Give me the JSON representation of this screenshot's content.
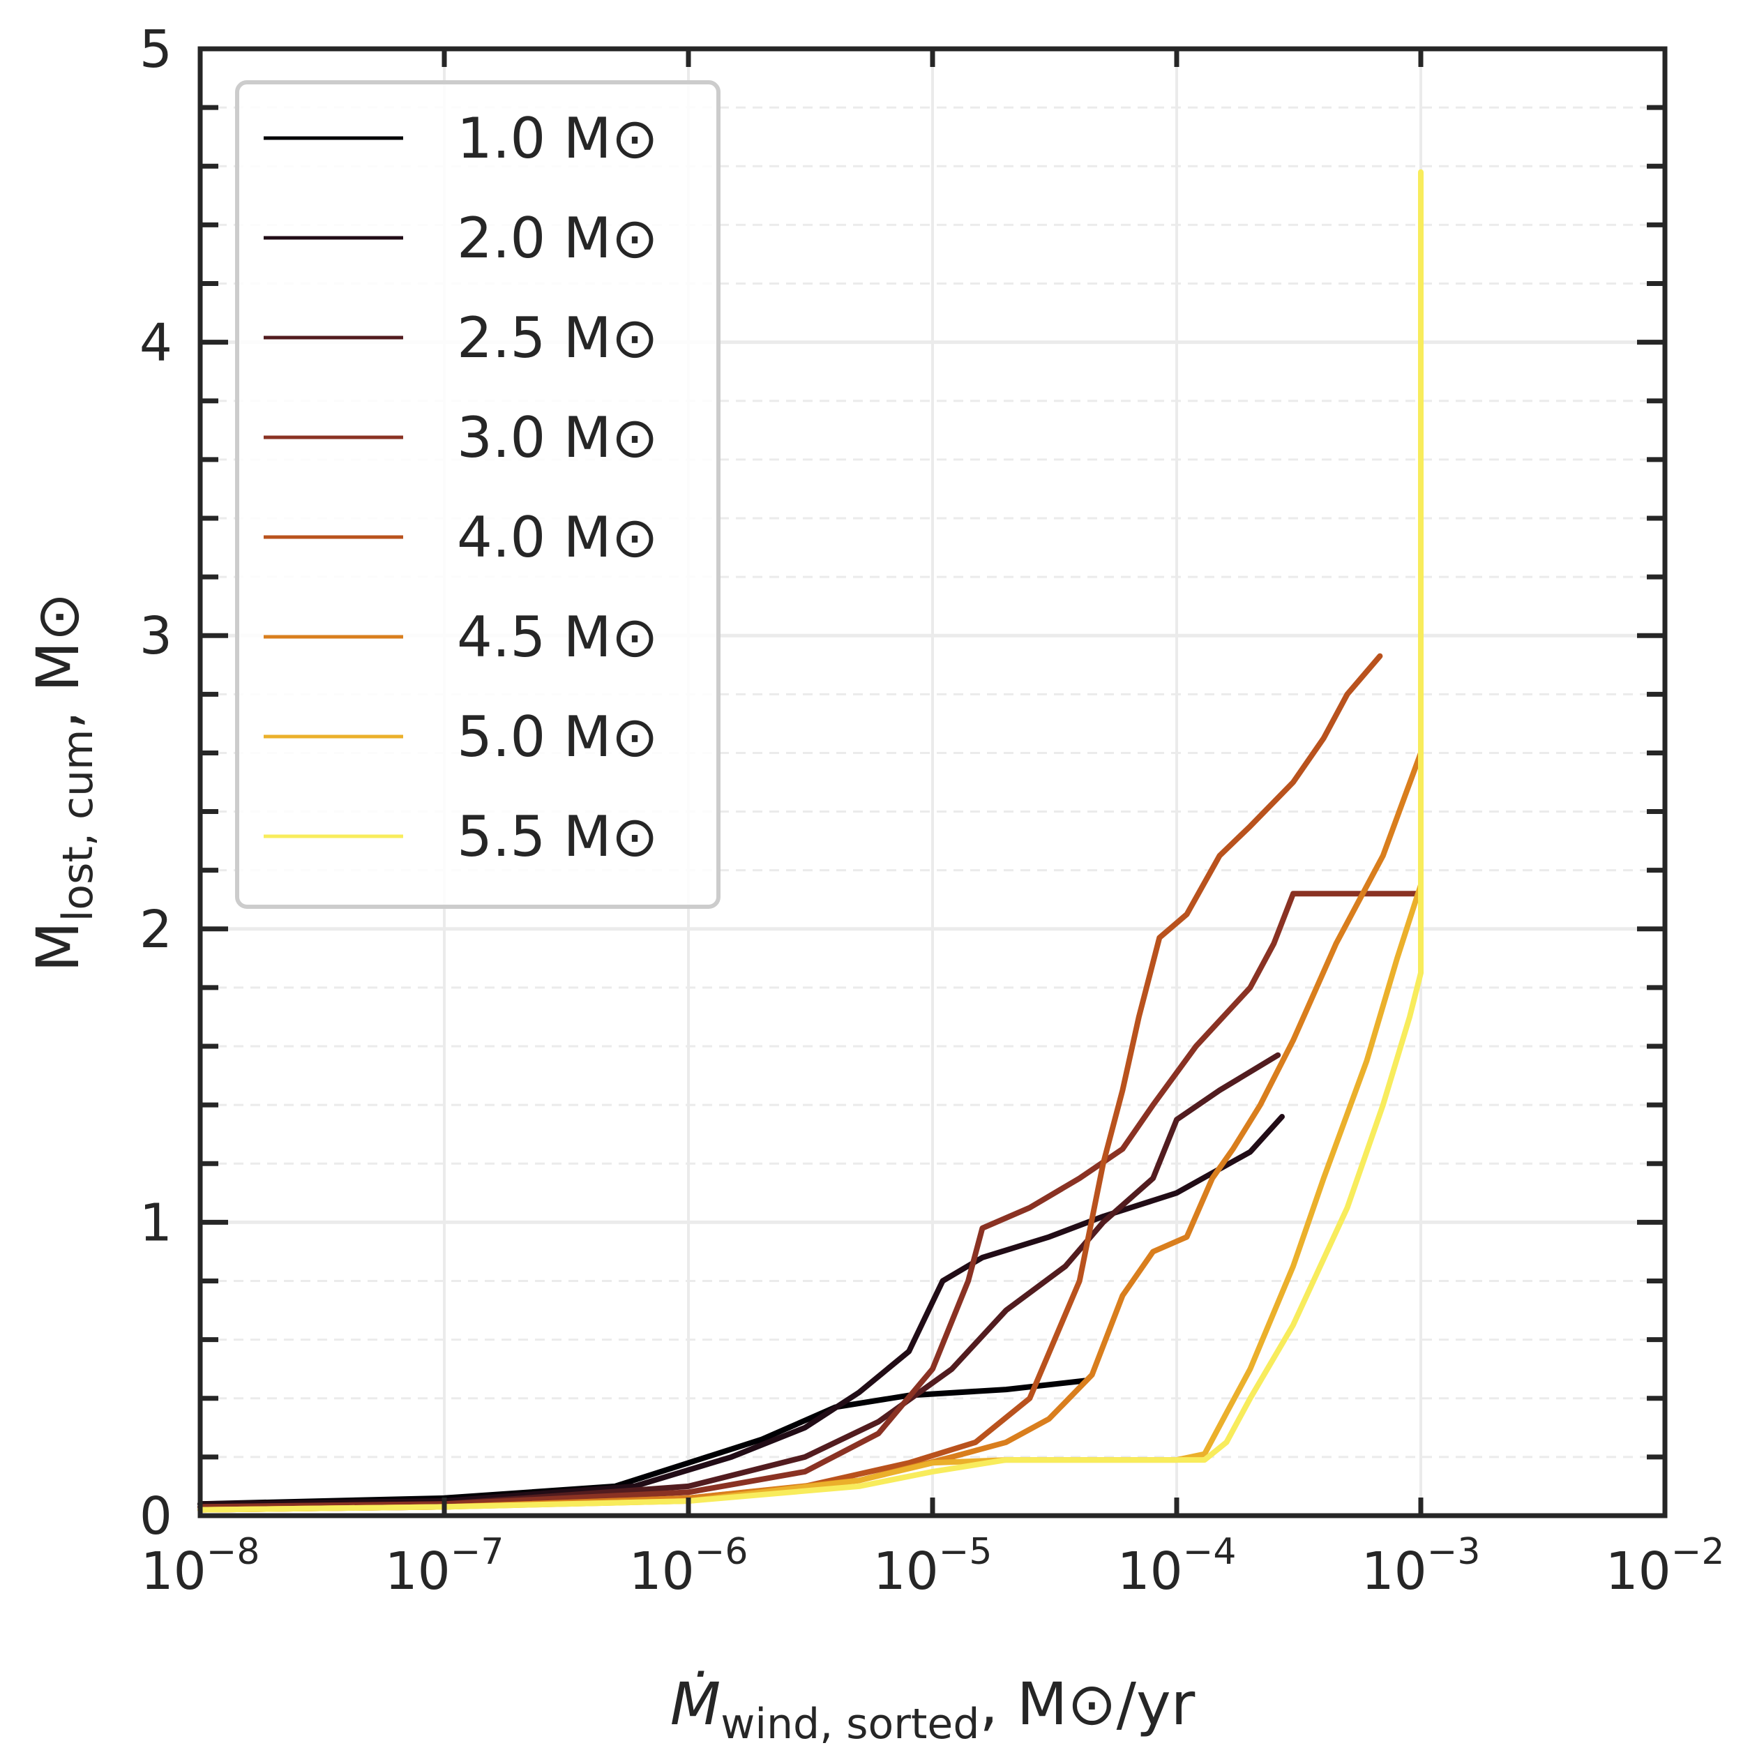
{
  "chart_data": {
    "type": "line",
    "title": "",
    "xscale": "log",
    "xlim": [
      1e-08,
      0.01
    ],
    "ylim": [
      0,
      5
    ],
    "xlabel": {
      "main": "Ṁ",
      "sub": "wind, sorted",
      "suffix": ", M⊙/yr"
    },
    "ylabel": {
      "main": "M",
      "sub": "lost, cum",
      "suffix": ", M⊙"
    },
    "x_ticks": [
      {
        "base": "10",
        "exp": "−8"
      },
      {
        "base": "10",
        "exp": "−7"
      },
      {
        "base": "10",
        "exp": "−6"
      },
      {
        "base": "10",
        "exp": "−5"
      },
      {
        "base": "10",
        "exp": "−4"
      },
      {
        "base": "10",
        "exp": "−3"
      },
      {
        "base": "10",
        "exp": "−2"
      }
    ],
    "y_ticks": [
      "0",
      "1",
      "2",
      "3",
      "4",
      "5"
    ],
    "grid": true,
    "legend_position": "top-left",
    "series": [
      {
        "name": "1.0 M⊙",
        "color": "#000004",
        "points": [
          [
            1e-08,
            0.04
          ],
          [
            1e-07,
            0.06
          ],
          [
            5e-07,
            0.1
          ],
          [
            1e-06,
            0.18
          ],
          [
            2e-06,
            0.26
          ],
          [
            4e-06,
            0.37
          ],
          [
            8e-06,
            0.41
          ],
          [
            2e-05,
            0.43
          ],
          [
            4.2e-05,
            0.46
          ]
        ]
      },
      {
        "name": "2.0 M⊙",
        "color": "#210c16",
        "points": [
          [
            1e-08,
            0.04
          ],
          [
            1e-07,
            0.05
          ],
          [
            6e-07,
            0.1
          ],
          [
            1.5e-06,
            0.2
          ],
          [
            3e-06,
            0.3
          ],
          [
            5e-06,
            0.42
          ],
          [
            8e-06,
            0.56
          ],
          [
            1.1e-05,
            0.8
          ],
          [
            1.6e-05,
            0.88
          ],
          [
            3e-05,
            0.95
          ],
          [
            5e-05,
            1.02
          ],
          [
            0.0001,
            1.1
          ],
          [
            0.0002,
            1.24
          ],
          [
            0.00027,
            1.36
          ]
        ]
      },
      {
        "name": "2.5 M⊙",
        "color": "#521c1f",
        "points": [
          [
            1e-08,
            0.03
          ],
          [
            1e-07,
            0.04
          ],
          [
            1e-06,
            0.1
          ],
          [
            3e-06,
            0.2
          ],
          [
            6e-06,
            0.32
          ],
          [
            1.2e-05,
            0.5
          ],
          [
            2e-05,
            0.7
          ],
          [
            3.5e-05,
            0.85
          ],
          [
            5e-05,
            1.0
          ],
          [
            8e-05,
            1.15
          ],
          [
            0.0001,
            1.35
          ],
          [
            0.00015,
            1.45
          ],
          [
            0.00026,
            1.57
          ]
        ]
      },
      {
        "name": "3.0 M⊙",
        "color": "#8a3223",
        "points": [
          [
            1e-08,
            0.03
          ],
          [
            1e-07,
            0.04
          ],
          [
            1e-06,
            0.08
          ],
          [
            3e-06,
            0.15
          ],
          [
            6e-06,
            0.28
          ],
          [
            1e-05,
            0.5
          ],
          [
            1.4e-05,
            0.8
          ],
          [
            1.6e-05,
            0.98
          ],
          [
            2.5e-05,
            1.05
          ],
          [
            4e-05,
            1.15
          ],
          [
            6e-05,
            1.25
          ],
          [
            8e-05,
            1.4
          ],
          [
            0.00012,
            1.6
          ],
          [
            0.0002,
            1.8
          ],
          [
            0.00025,
            1.95
          ],
          [
            0.0003,
            2.12
          ],
          [
            0.0005,
            2.12
          ],
          [
            0.00096,
            2.12
          ]
        ]
      },
      {
        "name": "4.0 M⊙",
        "color": "#b9521d",
        "points": [
          [
            1e-08,
            0.02
          ],
          [
            1e-07,
            0.03
          ],
          [
            1e-06,
            0.06
          ],
          [
            3e-06,
            0.1
          ],
          [
            8e-06,
            0.18
          ],
          [
            1.5e-05,
            0.25
          ],
          [
            2.5e-05,
            0.4
          ],
          [
            4e-05,
            0.8
          ],
          [
            5e-05,
            1.2
          ],
          [
            6e-05,
            1.45
          ],
          [
            7e-05,
            1.7
          ],
          [
            8.5e-05,
            1.97
          ],
          [
            0.00011,
            2.05
          ],
          [
            0.00015,
            2.25
          ],
          [
            0.0002,
            2.35
          ],
          [
            0.0003,
            2.5
          ],
          [
            0.0004,
            2.65
          ],
          [
            0.0005,
            2.8
          ],
          [
            0.00068,
            2.93
          ]
        ]
      },
      {
        "name": "4.5 M⊙",
        "color": "#d97e1d",
        "points": [
          [
            1e-08,
            0.02
          ],
          [
            1e-07,
            0.03
          ],
          [
            1e-06,
            0.06
          ],
          [
            5e-06,
            0.12
          ],
          [
            1.2e-05,
            0.2
          ],
          [
            2e-05,
            0.25
          ],
          [
            3e-05,
            0.33
          ],
          [
            4.5e-05,
            0.48
          ],
          [
            6e-05,
            0.75
          ],
          [
            8e-05,
            0.9
          ],
          [
            0.00011,
            0.95
          ],
          [
            0.00014,
            1.15
          ],
          [
            0.00017,
            1.25
          ],
          [
            0.00022,
            1.4
          ],
          [
            0.0003,
            1.62
          ],
          [
            0.00045,
            1.95
          ],
          [
            0.0007,
            2.25
          ],
          [
            0.001,
            2.6
          ]
        ]
      },
      {
        "name": "5.0 M⊙",
        "color": "#ebb02b",
        "points": [
          [
            1e-08,
            0.02
          ],
          [
            1e-07,
            0.03
          ],
          [
            1e-06,
            0.05
          ],
          [
            5e-06,
            0.12
          ],
          [
            1e-05,
            0.18
          ],
          [
            2e-05,
            0.19
          ],
          [
            5e-05,
            0.19
          ],
          [
            0.0001,
            0.19
          ],
          [
            0.00013,
            0.21
          ],
          [
            0.00016,
            0.35
          ],
          [
            0.0002,
            0.5
          ],
          [
            0.0003,
            0.85
          ],
          [
            0.0004,
            1.15
          ],
          [
            0.0006,
            1.55
          ],
          [
            0.0008,
            1.9
          ],
          [
            0.001,
            2.15
          ]
        ]
      },
      {
        "name": "5.5 M⊙",
        "color": "#f8ec5c",
        "points": [
          [
            1e-08,
            0.02
          ],
          [
            1e-07,
            0.03
          ],
          [
            1e-06,
            0.05
          ],
          [
            5e-06,
            0.1
          ],
          [
            1e-05,
            0.15
          ],
          [
            2e-05,
            0.19
          ],
          [
            5e-05,
            0.19
          ],
          [
            0.0001,
            0.19
          ],
          [
            0.00013,
            0.19
          ],
          [
            0.00016,
            0.25
          ],
          [
            0.0002,
            0.4
          ],
          [
            0.0003,
            0.65
          ],
          [
            0.0005,
            1.05
          ],
          [
            0.0007,
            1.4
          ],
          [
            0.0009,
            1.7
          ],
          [
            0.001,
            1.85
          ],
          [
            0.001,
            2.6
          ],
          [
            0.001,
            3.5
          ],
          [
            0.001,
            4.58
          ]
        ]
      }
    ]
  }
}
